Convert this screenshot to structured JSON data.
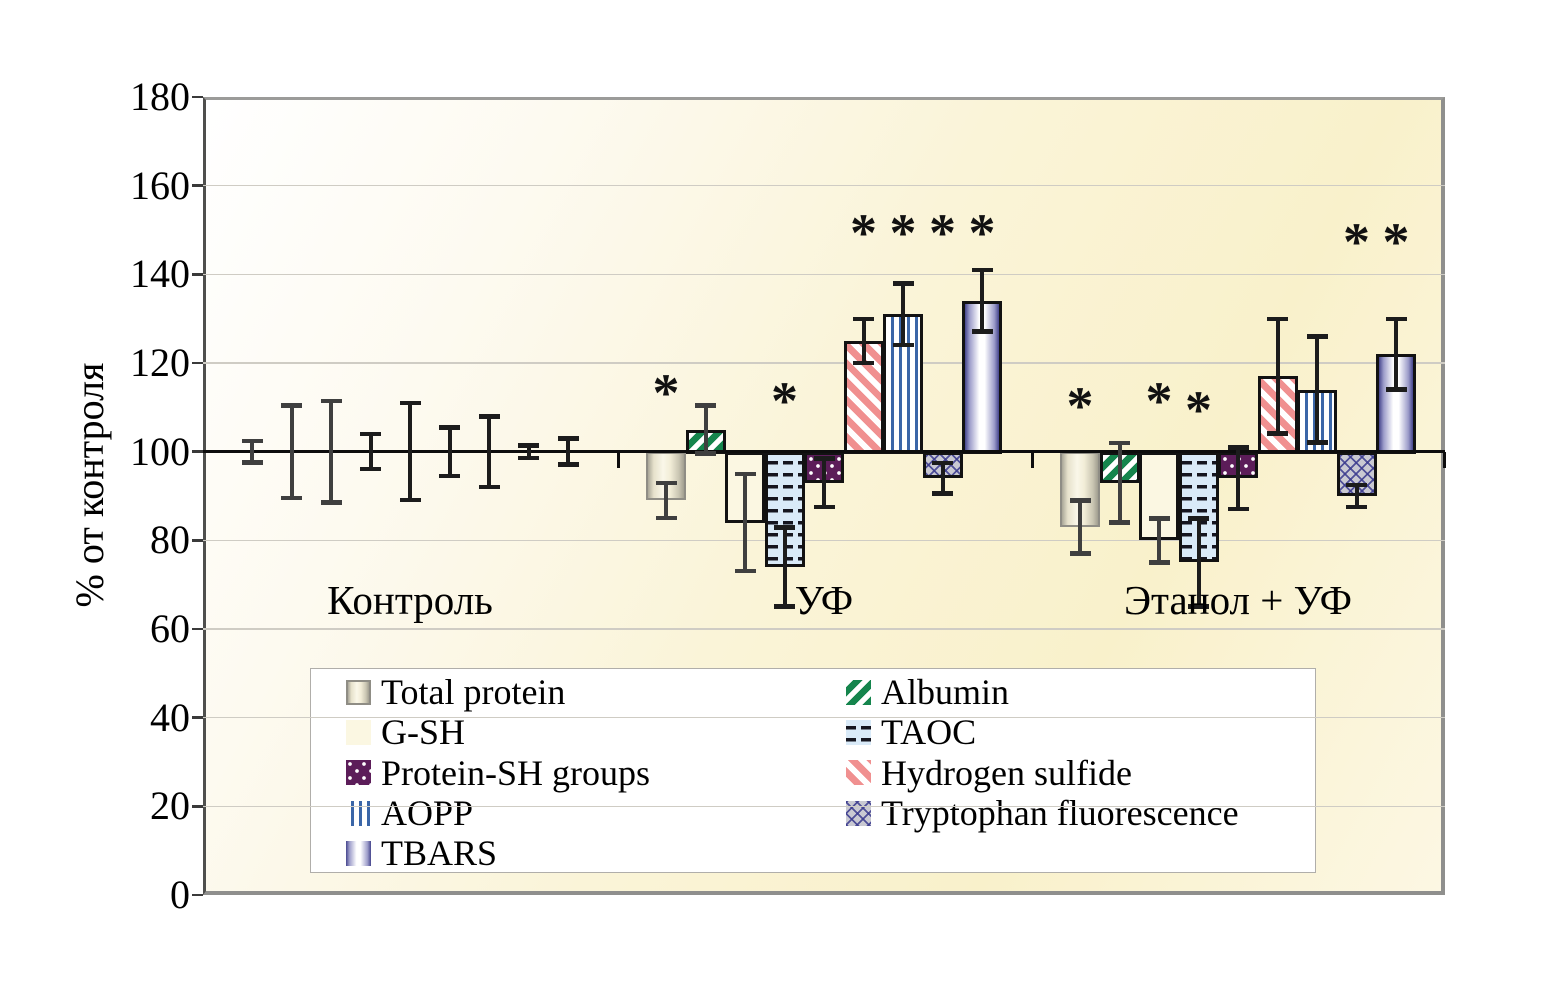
{
  "chart_data": {
    "type": "bar",
    "title": "",
    "ylabel": "% от контроля",
    "ylim": [
      0,
      180
    ],
    "yticks": [
      0,
      20,
      40,
      60,
      80,
      100,
      120,
      140,
      160,
      180
    ],
    "baseline": 100,
    "grid": true,
    "categories": [
      "Контроль",
      "УФ",
      "Этанол + УФ"
    ],
    "series": [
      {
        "name": "Total protein",
        "values": [
          100,
          89,
          83
        ],
        "errors": [
          2.5,
          4,
          6
        ]
      },
      {
        "name": "Albumin",
        "values": [
          100,
          105,
          93
        ],
        "errors": [
          10.5,
          5.5,
          9
        ]
      },
      {
        "name": "G-SH",
        "values": [
          100,
          84,
          80
        ],
        "errors": [
          11.5,
          11,
          5
        ]
      },
      {
        "name": "TAOC",
        "values": [
          100,
          74,
          75
        ],
        "errors": [
          4,
          9,
          10
        ]
      },
      {
        "name": "Protein-SH groups",
        "values": [
          100,
          93,
          94
        ],
        "errors": [
          11,
          5.5,
          7
        ]
      },
      {
        "name": "Hydrogen sulfide",
        "values": [
          100,
          125,
          117
        ],
        "errors": [
          5.5,
          5,
          13
        ]
      },
      {
        "name": "AOPP",
        "values": [
          100,
          131,
          114
        ],
        "errors": [
          8,
          7,
          12
        ]
      },
      {
        "name": "Tryptophan fluorescence",
        "values": [
          100,
          94,
          90
        ],
        "errors": [
          1.5,
          3.5,
          2.5
        ]
      },
      {
        "name": "TBARS",
        "values": [
          100,
          134,
          122
        ],
        "errors": [
          3,
          7,
          8
        ]
      }
    ],
    "significance": {
      "marker": "*",
      "entries": [
        {
          "category": "УФ",
          "series": "Total protein",
          "level": 114
        },
        {
          "category": "УФ",
          "series": "TAOC",
          "level": 112
        },
        {
          "category": "УФ",
          "series": "Hydrogen sulfide",
          "level": 150
        },
        {
          "category": "УФ",
          "series": "AOPP",
          "level": 150
        },
        {
          "category": "УФ",
          "series": "Tryptophan fluorescence",
          "level": 150
        },
        {
          "category": "УФ",
          "series": "TBARS",
          "level": 150
        },
        {
          "category": "Этанол + УФ",
          "series": "Total protein",
          "level": 111
        },
        {
          "category": "Этанол + УФ",
          "series": "G-SH",
          "level": 112
        },
        {
          "category": "Этанол + УФ",
          "series": "TAOC",
          "level": 110
        },
        {
          "category": "Этанол + УФ",
          "series": "Tryptophan fluorescence",
          "level": 148
        },
        {
          "category": "Этанол + УФ",
          "series": "TBARS",
          "level": 148
        }
      ]
    },
    "legend": {
      "position": "bottom",
      "columns": [
        [
          "Total protein",
          "G-SH",
          "Protein-SH groups",
          "AOPP",
          "TBARS"
        ],
        [
          "Albumin",
          "TAOC",
          "Hydrogen sulfide",
          "Tryptophan fluorescence"
        ]
      ]
    },
    "colors": {
      "total_protein_fill": "#f2edd7",
      "total_protein_border": "#8f8d85",
      "albumin_stripe": "#15854d",
      "gsh_fill": "#fbf7e2",
      "taoc_fill": "#d9eaf8",
      "protein_sh_fill": "#5c1d59",
      "hydrogen_sulfide_stripe": "#f09090",
      "aopp_stripe": "#3b66a8",
      "tryptophan_fill": "#c9c9d2",
      "tryptophan_hatch": "#3a3a8e",
      "tbars_edge": "#45458d",
      "plot_bg_top_left": "#ffffff",
      "plot_bg_yellow": "#f9f1cb",
      "gridline": "#cfccc4",
      "baseline_color": "#0d0d0d",
      "axis_color": "#4f4f4d"
    }
  }
}
